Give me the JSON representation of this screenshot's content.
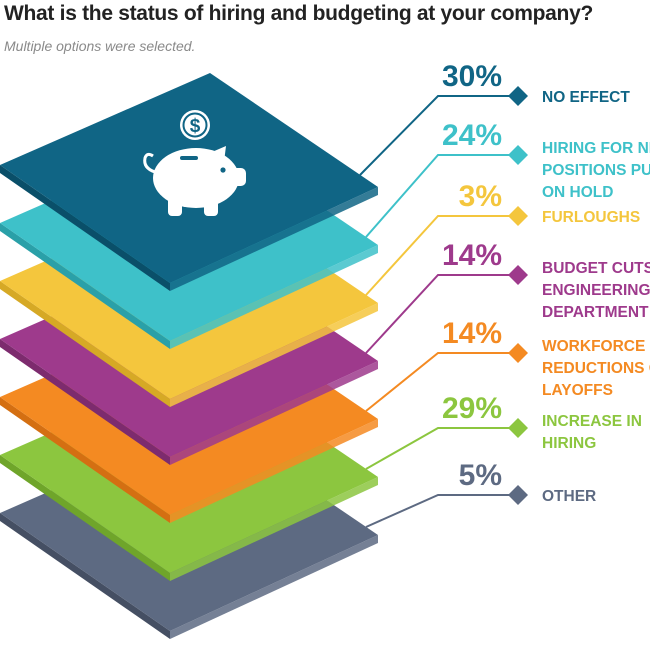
{
  "title": "What is the status of hiring and budgeting at your company?",
  "subtitle": "Multiple options were selected.",
  "icons": {
    "top_layer": "piggy-bank-icon",
    "coin": "dollar-coin-icon"
  },
  "chart_data": {
    "type": "layered-stack",
    "title": "What is the status of hiring and budgeting at your company?",
    "subtitle": "Multiple options were selected.",
    "unit": "%",
    "items": [
      {
        "value": 30,
        "display": "30%",
        "label_lines": [
          "NO EFFECT"
        ],
        "color": "#106585",
        "edge": "#0a4f69"
      },
      {
        "value": 24,
        "display": "24%",
        "label_lines": [
          "HIRING FOR NEW",
          "POSITIONS PUT",
          "ON HOLD"
        ],
        "color": "#3ec1c9",
        "edge": "#2aa0a8"
      },
      {
        "value": 3,
        "display": "3%",
        "label_lines": [
          "FURLOUGHS"
        ],
        "color": "#f4c63d",
        "edge": "#d6a925"
      },
      {
        "value": 14,
        "display": "14%",
        "label_lines": [
          "BUDGET CUTS TO",
          "ENGINEERING",
          "DEPARTMENT"
        ],
        "color": "#9e3a8c",
        "edge": "#7d2b6e"
      },
      {
        "value": 14,
        "display": "14%",
        "label_lines": [
          "WORKFORCE",
          "REDUCTIONS OR",
          "LAYOFFS"
        ],
        "color": "#f48a22",
        "edge": "#d46f12"
      },
      {
        "value": 29,
        "display": "29%",
        "label_lines": [
          "INCREASE IN",
          "HIRING"
        ],
        "color": "#8cc63f",
        "edge": "#6fa52a"
      },
      {
        "value": 5,
        "display": "5%",
        "label_lines": [
          "OTHER"
        ],
        "color": "#5d6a82",
        "edge": "#454f63"
      }
    ]
  }
}
